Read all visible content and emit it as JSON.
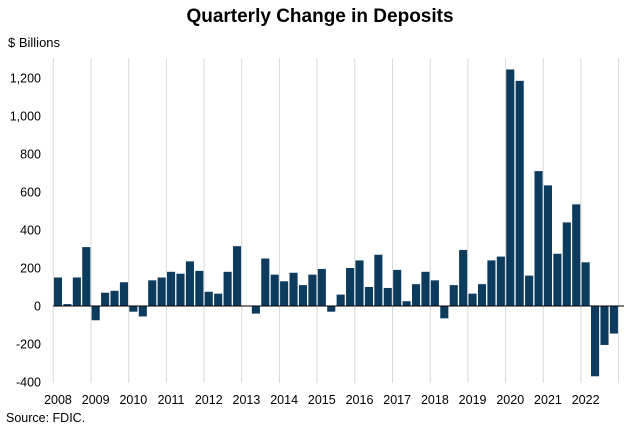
{
  "chart_data": {
    "type": "bar",
    "title": "Quarterly Change in Deposits",
    "ylabel": "$ Billions",
    "source": "Source: FDIC.",
    "ylim": [
      -400,
      1300
    ],
    "yticks": [
      -400,
      -200,
      0,
      200,
      400,
      600,
      800,
      1000,
      1200
    ],
    "ytick_labels": [
      "-400",
      "-200",
      "0",
      "200",
      "400",
      "600",
      "800",
      "1,000",
      "1,200"
    ],
    "year_labels": [
      "2008",
      "2009",
      "2010",
      "2011",
      "2012",
      "2013",
      "2014",
      "2015",
      "2016",
      "2017",
      "2018",
      "2019",
      "2020",
      "2021",
      "2022"
    ],
    "grid": "vertical",
    "bar_color": "#0c3b5e",
    "categories": [
      "2008Q1",
      "2008Q2",
      "2008Q3",
      "2008Q4",
      "2009Q1",
      "2009Q2",
      "2009Q3",
      "2009Q4",
      "2010Q1",
      "2010Q2",
      "2010Q3",
      "2010Q4",
      "2011Q1",
      "2011Q2",
      "2011Q3",
      "2011Q4",
      "2012Q1",
      "2012Q2",
      "2012Q3",
      "2012Q4",
      "2013Q1",
      "2013Q2",
      "2013Q3",
      "2013Q4",
      "2014Q1",
      "2014Q2",
      "2014Q3",
      "2014Q4",
      "2015Q1",
      "2015Q2",
      "2015Q3",
      "2015Q4",
      "2016Q1",
      "2016Q2",
      "2016Q3",
      "2016Q4",
      "2017Q1",
      "2017Q2",
      "2017Q3",
      "2017Q4",
      "2018Q1",
      "2018Q2",
      "2018Q3",
      "2018Q4",
      "2019Q1",
      "2019Q2",
      "2019Q3",
      "2019Q4",
      "2020Q1",
      "2020Q2",
      "2020Q3",
      "2020Q4",
      "2021Q1",
      "2021Q2",
      "2021Q3",
      "2021Q4",
      "2022Q1",
      "2022Q2",
      "2022Q3",
      "2022Q4"
    ],
    "values": [
      150,
      10,
      150,
      310,
      -75,
      70,
      80,
      125,
      -30,
      -55,
      135,
      150,
      180,
      170,
      235,
      185,
      75,
      65,
      180,
      315,
      0,
      -40,
      250,
      165,
      130,
      175,
      110,
      165,
      195,
      -30,
      60,
      200,
      240,
      100,
      270,
      95,
      190,
      25,
      115,
      180,
      135,
      -65,
      110,
      295,
      65,
      115,
      240,
      260,
      1245,
      1185,
      160,
      710,
      635,
      275,
      440,
      535,
      230,
      -370,
      -205,
      -145
    ]
  }
}
